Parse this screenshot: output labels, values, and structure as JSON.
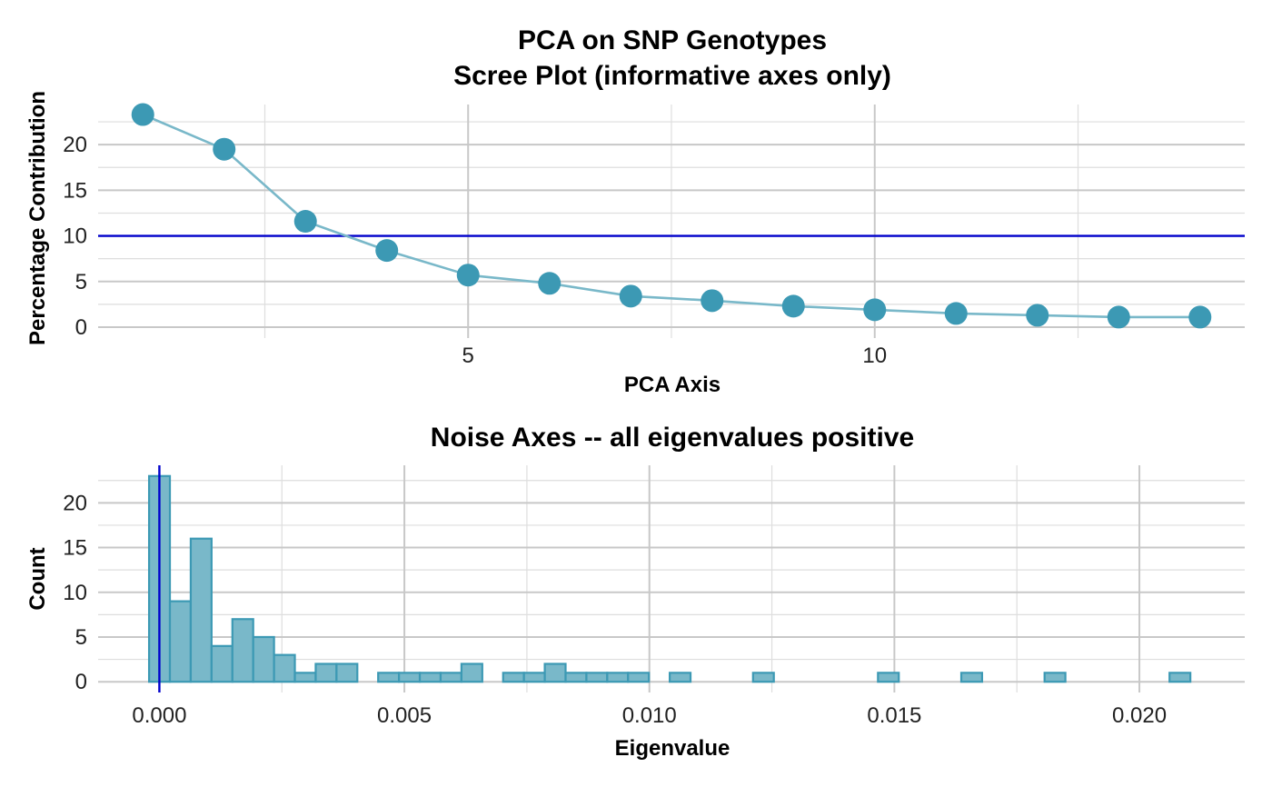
{
  "chart_data": [
    {
      "type": "line",
      "title_lines": [
        "PCA on SNP Genotypes",
        "Scree Plot (informative axes only)"
      ],
      "xlabel": "PCA Axis",
      "ylabel": "Percentage Contribution",
      "x": [
        1,
        2,
        3,
        4,
        5,
        6,
        7,
        8,
        9,
        10,
        11,
        12,
        13,
        14
      ],
      "y": [
        23.3,
        19.5,
        11.6,
        8.4,
        5.7,
        4.8,
        3.4,
        2.9,
        2.3,
        1.9,
        1.5,
        1.3,
        1.1,
        1.1
      ],
      "xlim": [
        0.45,
        14.55
      ],
      "ylim": [
        -1.2,
        24.4
      ],
      "xticks": [
        5,
        10
      ],
      "xtick_labels": [
        "5",
        "10"
      ],
      "yticks": [
        0,
        5,
        10,
        15,
        20
      ],
      "ytick_labels": [
        "0",
        "5",
        "10",
        "15",
        "20"
      ],
      "hline": 10,
      "hline_color": "#0000cc",
      "point_color": "#3c99b4",
      "line_color": "#79b8c9",
      "grid": true,
      "legend": "none"
    },
    {
      "type": "bar",
      "subtype": "histogram",
      "title": "Noise Axes -- all eigenvalues positive",
      "xlabel": "Eigenvalue",
      "ylabel": "Count",
      "bin_width": 0.000425,
      "bin_start": -0.00021,
      "counts": [
        23,
        9,
        16,
        4,
        7,
        5,
        3,
        1,
        2,
        2,
        0,
        1,
        1,
        1,
        1,
        2,
        0,
        1,
        1,
        2,
        1,
        1,
        1,
        1,
        0,
        1,
        0,
        0,
        0,
        1,
        0,
        0,
        0,
        0,
        0,
        1,
        0,
        0,
        0,
        1,
        0,
        0,
        0,
        1,
        0,
        0,
        0,
        0,
        0,
        1
      ],
      "xlim": [
        -0.00125,
        0.02215
      ],
      "ylim": [
        -1.2,
        24.2
      ],
      "xticks": [
        0,
        0.005,
        0.01,
        0.015,
        0.02
      ],
      "xtick_labels": [
        "0.000",
        "0.005",
        "0.010",
        "0.015",
        "0.020"
      ],
      "yticks": [
        0,
        5,
        10,
        15,
        20
      ],
      "ytick_labels": [
        "0",
        "5",
        "10",
        "15",
        "20"
      ],
      "vline": 0,
      "vline_color": "#0000cc",
      "fill_color": "#79b8c9",
      "edge_color": "#3c99b4",
      "grid": true,
      "legend": "none"
    }
  ]
}
